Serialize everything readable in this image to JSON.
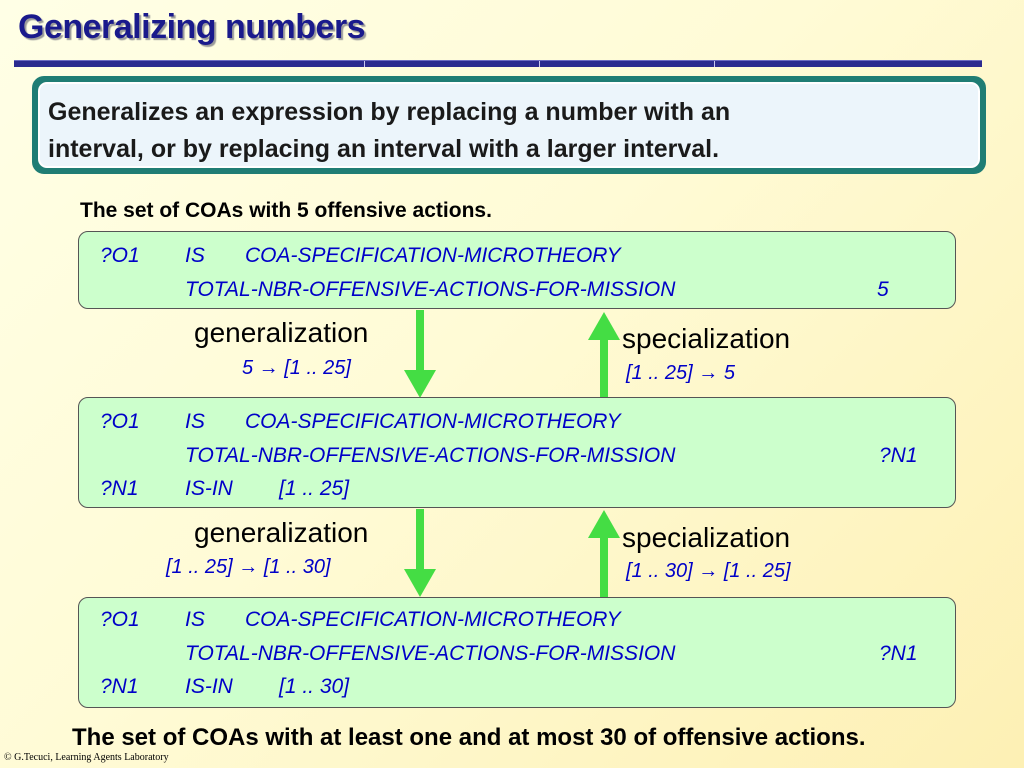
{
  "title": "Generalizing numbers",
  "definition": {
    "line1": "Generalizes an expression by replacing a number with an",
    "line2": "interval, or by replacing an interval with a larger interval."
  },
  "top_caption": "The set of COAs with 5 offensive actions.",
  "bottom_caption": "The set of COAs with at least one and at most 30 of offensive actions.",
  "expressions": [
    {
      "line1": {
        "var": "?O1",
        "rel": "IS",
        "concept": "COA-SPECIFICATION-MICROTHEORY"
      },
      "line2": {
        "feature": "TOTAL-NBR-OFFENSIVE-ACTIONS-FOR-MISSION",
        "value": "5"
      }
    },
    {
      "line1": {
        "var": "?O1",
        "rel": "IS",
        "concept": "COA-SPECIFICATION-MICROTHEORY"
      },
      "line2": {
        "feature": "TOTAL-NBR-OFFENSIVE-ACTIONS-FOR-MISSION",
        "value": "?N1"
      },
      "line3": {
        "var": "?N1",
        "rel": "IS-IN",
        "value": "[1 .. 25]"
      }
    },
    {
      "line1": {
        "var": "?O1",
        "rel": "IS",
        "concept": "COA-SPECIFICATION-MICROTHEORY"
      },
      "line2": {
        "feature": "TOTAL-NBR-OFFENSIVE-ACTIONS-FOR-MISSION",
        "value": "?N1"
      },
      "line3": {
        "var": "?N1",
        "rel": "IS-IN",
        "value": "[1 .. 30]"
      }
    }
  ],
  "transitions": [
    {
      "generalization": {
        "label": "generalization",
        "rule": "5 → [1 .. 25]"
      },
      "specialization": {
        "label": "specialization",
        "rule": "[1 .. 25] → 5"
      }
    },
    {
      "generalization": {
        "label": "generalization",
        "rule": "[1 .. 25] → [1 .. 30]"
      },
      "specialization": {
        "label": "specialization",
        "rule": "[1 .. 30] → [1 .. 25]"
      }
    }
  ],
  "footer": "© G.Tecuci, Learning Agents Laboratory",
  "colors": {
    "title": "#1a1a8c",
    "expression_text": "#0000c8",
    "expression_box": "#ccffcc",
    "arrow": "#44dd44",
    "definition_border": "#1f7d74"
  },
  "icons": [
    "arrow-down-icon",
    "arrow-up-icon"
  ]
}
